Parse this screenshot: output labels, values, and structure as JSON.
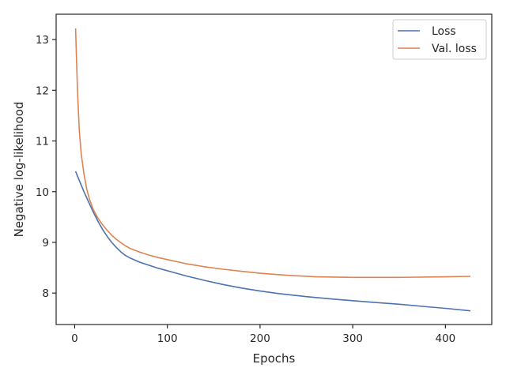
{
  "chart_data": {
    "type": "line",
    "xlabel": "Epochs",
    "ylabel": "Negative log-likelihood",
    "xlim": [
      -20,
      450
    ],
    "ylim": [
      7.38,
      13.5
    ],
    "xticks": [
      0,
      100,
      200,
      300,
      400
    ],
    "yticks": [
      8,
      9,
      10,
      11,
      12,
      13
    ],
    "grid": false,
    "legend_position": "top-right",
    "series": [
      {
        "name": "Loss",
        "color": "#4c72b0",
        "x": [
          1,
          5,
          10,
          15,
          20,
          25,
          30,
          35,
          40,
          45,
          50,
          55,
          60,
          70,
          80,
          90,
          100,
          120,
          140,
          160,
          180,
          200,
          220,
          250,
          280,
          300,
          320,
          350,
          380,
          400,
          427
        ],
        "y": [
          10.4,
          10.22,
          10.0,
          9.8,
          9.6,
          9.42,
          9.26,
          9.12,
          9.0,
          8.9,
          8.81,
          8.74,
          8.69,
          8.61,
          8.55,
          8.49,
          8.44,
          8.34,
          8.25,
          8.17,
          8.1,
          8.04,
          7.99,
          7.93,
          7.88,
          7.85,
          7.82,
          7.78,
          7.73,
          7.7,
          7.65
        ]
      },
      {
        "name": "Val. loss",
        "color": "#dd8452",
        "x": [
          1,
          2,
          3,
          5,
          7,
          10,
          13,
          16,
          20,
          25,
          30,
          35,
          40,
          45,
          50,
          55,
          60,
          70,
          80,
          90,
          100,
          120,
          140,
          160,
          180,
          200,
          230,
          260,
          300,
          350,
          400,
          427
        ],
        "y": [
          13.22,
          12.6,
          12.0,
          11.2,
          10.75,
          10.35,
          10.05,
          9.85,
          9.65,
          9.48,
          9.35,
          9.24,
          9.14,
          9.06,
          8.99,
          8.93,
          8.88,
          8.81,
          8.75,
          8.7,
          8.66,
          8.58,
          8.52,
          8.47,
          8.43,
          8.39,
          8.35,
          8.32,
          8.31,
          8.31,
          8.32,
          8.33
        ]
      }
    ]
  }
}
